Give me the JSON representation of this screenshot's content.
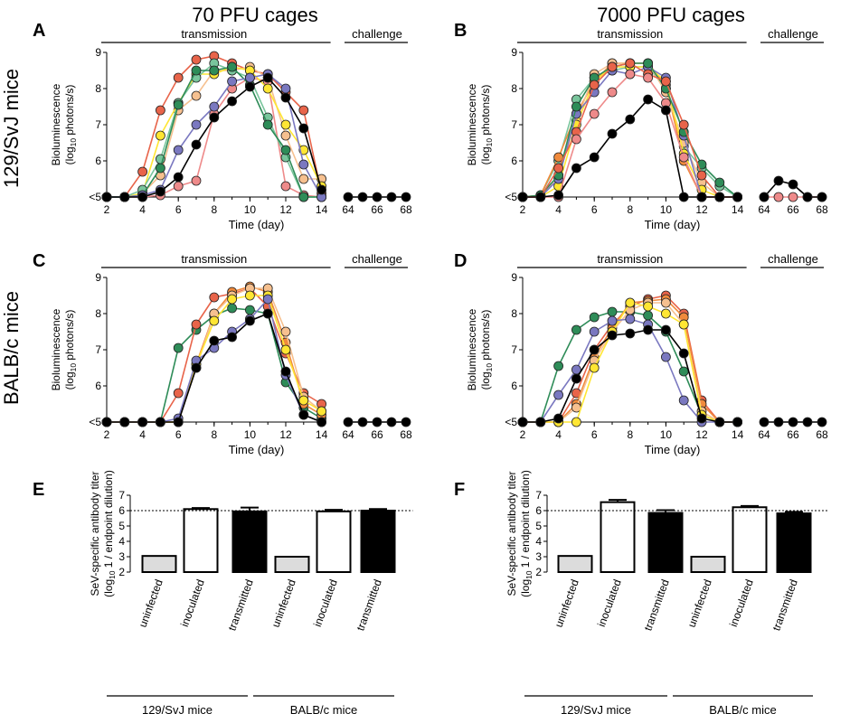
{
  "column_titles": [
    "70 PFU cages",
    "7000 PFU cages"
  ],
  "row_titles": [
    "129/SvJ mice",
    "BALB/c mice"
  ],
  "colors": {
    "red": "#e8644a",
    "peach": "#f6c08f",
    "orange": "#f08a3c",
    "yellow": "#ffe633",
    "green": "#2e8c58",
    "light_green": "#79c59c",
    "purple": "#7a78c0",
    "pink": "#ee8a8a",
    "black": "#000000",
    "bar_uninfected": "#dcdcdc",
    "bar_inoculated": "#ffffff",
    "bar_transmitted": "#000000"
  },
  "chart_data": [
    {
      "panel": "A",
      "type": "line",
      "phase_labels": [
        "transmission",
        "challenge"
      ],
      "xlabel": "Time (day)",
      "ylabel_line1": "Bioluminescence",
      "ylabel_line2_main": "(log",
      "ylabel_line2_sub": "10",
      "ylabel_line2_end": " photons/s)",
      "ylim": [
        5,
        9
      ],
      "y_ticks": [
        "<5",
        "6",
        "7",
        "8",
        "9"
      ],
      "x_ticks": [
        "2",
        "4",
        "6",
        "8",
        "10",
        "12",
        "14",
        "64",
        "66",
        "68"
      ],
      "days": [
        2,
        3,
        4,
        5,
        6,
        7,
        8,
        9,
        10,
        11,
        12,
        13,
        14
      ],
      "challenge_days": [
        64,
        65,
        66,
        67,
        68
      ],
      "series": [
        {
          "color": "red",
          "values": [
            5,
            5,
            5.7,
            7.4,
            8.3,
            8.8,
            8.9,
            8.7,
            8.5,
            8.4,
            7.9,
            7.4,
            5.1
          ]
        },
        {
          "color": "pink",
          "values": [
            5,
            5,
            5,
            5.05,
            5.3,
            5.45,
            7.3,
            8.0,
            8.3,
            8.2,
            5.3,
            5.05,
            5
          ]
        },
        {
          "color": "peach",
          "values": [
            5,
            5,
            5.1,
            5.6,
            7.4,
            7.8,
            8.5,
            8.5,
            8.6,
            8.3,
            6.7,
            5.5,
            5.5
          ]
        },
        {
          "color": "yellow",
          "values": [
            5,
            5,
            5.1,
            6.7,
            7.6,
            8.4,
            8.4,
            8.6,
            8.5,
            8.0,
            7.0,
            6.3,
            5.3
          ]
        },
        {
          "color": "light_green",
          "values": [
            5,
            5,
            5.2,
            6.05,
            7.6,
            8.3,
            8.7,
            8.5,
            8.3,
            7.2,
            6.1,
            5.0,
            5.0
          ]
        },
        {
          "color": "green",
          "values": [
            5,
            5,
            5.05,
            5.8,
            7.55,
            8.5,
            8.5,
            8.6,
            8.1,
            7.0,
            6.3,
            5.0,
            5.0
          ]
        },
        {
          "color": "purple",
          "values": [
            5,
            5,
            5.05,
            5.2,
            6.3,
            7.0,
            7.5,
            8.2,
            8.3,
            8.4,
            8.0,
            5.9,
            5.0
          ]
        },
        {
          "color": "black",
          "values": [
            5,
            5,
            5.0,
            5.15,
            5.55,
            6.45,
            7.2,
            7.65,
            8.05,
            8.3,
            7.75,
            6.9,
            5.2
          ]
        }
      ],
      "challenge_series": [
        {
          "color": "black",
          "values": [
            5,
            5,
            5,
            5,
            5
          ]
        }
      ]
    },
    {
      "panel": "B",
      "type": "line",
      "phase_labels": [
        "transmission",
        "challenge"
      ],
      "xlabel": "Time (day)",
      "ylabel_line1": "Bioluminescence",
      "ylabel_line2_main": "(log",
      "ylabel_line2_sub": "10",
      "ylabel_line2_end": " photons/s)",
      "ylim": [
        5,
        9
      ],
      "y_ticks": [
        "<5",
        "6",
        "7",
        "8",
        "9"
      ],
      "x_ticks": [
        "2",
        "4",
        "6",
        "8",
        "10",
        "12",
        "14",
        "64",
        "66",
        "68"
      ],
      "days": [
        2,
        3,
        4,
        5,
        6,
        7,
        8,
        9,
        10,
        11,
        12,
        13,
        14
      ],
      "challenge_days": [
        64,
        65,
        66,
        67,
        68
      ],
      "series": [
        {
          "color": "light_green",
          "values": [
            5,
            5.05,
            6.0,
            7.7,
            8.3,
            8.5,
            8.6,
            8.6,
            8.0,
            6.4,
            5.8,
            5.3,
            5.0
          ]
        },
        {
          "color": "orange",
          "values": [
            5,
            5.05,
            6.1,
            7.3,
            8.2,
            8.7,
            8.7,
            8.7,
            8.1,
            6.0,
            5.0,
            5.0,
            5.0
          ]
        },
        {
          "color": "peach",
          "values": [
            5,
            5,
            5.6,
            7.1,
            8.4,
            8.7,
            8.7,
            8.7,
            7.9,
            6.5,
            5.4,
            5.0,
            5.0
          ]
        },
        {
          "color": "yellow",
          "values": [
            5,
            5,
            5.3,
            7.0,
            8.2,
            8.6,
            8.6,
            8.6,
            8.2,
            6.2,
            5.2,
            5.0,
            5.0
          ]
        },
        {
          "color": "purple",
          "values": [
            5,
            5,
            5.5,
            7.3,
            7.9,
            8.5,
            8.4,
            8.6,
            8.3,
            6.7,
            5.0,
            5.0,
            5.0
          ]
        },
        {
          "color": "green",
          "values": [
            5,
            5.05,
            5.6,
            7.5,
            8.3,
            8.6,
            8.7,
            8.7,
            8.0,
            6.8,
            5.9,
            5.4,
            5.0
          ]
        },
        {
          "color": "red",
          "values": [
            5,
            5,
            5.8,
            6.8,
            8.1,
            8.6,
            8.7,
            8.4,
            8.2,
            7.0,
            5.6,
            5.0,
            5.0
          ]
        },
        {
          "color": "pink",
          "values": [
            5,
            5,
            5.0,
            6.6,
            7.3,
            7.9,
            8.4,
            8.3,
            7.6,
            6.1,
            5.0,
            5.0,
            5.0
          ]
        },
        {
          "color": "black",
          "values": [
            5,
            5,
            5.05,
            5.8,
            6.1,
            6.75,
            7.15,
            7.7,
            7.4,
            5.0,
            5.0,
            5.0,
            5.0
          ]
        }
      ],
      "challenge_series": [
        {
          "color": "pink",
          "values": [
            5,
            5,
            5,
            5,
            5
          ]
        },
        {
          "color": "black",
          "values": [
            5,
            5.45,
            5.35,
            5,
            5
          ]
        }
      ]
    },
    {
      "panel": "C",
      "type": "line",
      "phase_labels": [
        "transmission",
        "challenge"
      ],
      "xlabel": "Time (day)",
      "ylabel_line1": "Bioluminescence",
      "ylabel_line2_main": "(log",
      "ylabel_line2_sub": "10",
      "ylabel_line2_end": " photons/s)",
      "ylim": [
        5,
        9
      ],
      "y_ticks": [
        "<5",
        "6",
        "7",
        "8",
        "9"
      ],
      "x_ticks": [
        "2",
        "4",
        "6",
        "8",
        "10",
        "12",
        "14",
        "64",
        "66",
        "68"
      ],
      "days": [
        2,
        3,
        4,
        5,
        6,
        7,
        8,
        9,
        10,
        11,
        12,
        13,
        14
      ],
      "challenge_days": [
        64,
        65,
        66,
        67,
        68
      ],
      "series": [
        {
          "color": "green",
          "values": [
            5,
            5,
            5,
            5,
            7.05,
            7.55,
            7.95,
            8.15,
            8.1,
            8.0,
            6.1,
            5.4,
            5.1
          ]
        },
        {
          "color": "red",
          "values": [
            5,
            5,
            5,
            5,
            5.8,
            7.7,
            8.45,
            8.55,
            8.7,
            8.2,
            6.9,
            5.8,
            5.5
          ]
        },
        {
          "color": "orange",
          "values": [
            5,
            5,
            5,
            5,
            5.0,
            6.6,
            8.0,
            8.6,
            8.75,
            8.6,
            7.2,
            5.5,
            5.2
          ]
        },
        {
          "color": "peach",
          "values": [
            5,
            5,
            5,
            5,
            5.0,
            6.5,
            8.0,
            8.5,
            8.7,
            8.7,
            7.5,
            5.7,
            5.3
          ]
        },
        {
          "color": "yellow",
          "values": [
            5,
            5,
            5,
            5,
            5.0,
            6.6,
            7.8,
            8.4,
            8.5,
            8.5,
            7.0,
            5.6,
            5.3
          ]
        },
        {
          "color": "purple",
          "values": [
            5,
            5,
            5,
            5,
            5.1,
            6.7,
            7.05,
            7.5,
            7.85,
            8.4,
            6.3,
            5.2,
            5.0
          ]
        },
        {
          "color": "black",
          "values": [
            5,
            5,
            5,
            5,
            5.0,
            6.5,
            7.25,
            7.35,
            7.8,
            8.0,
            6.4,
            5.2,
            5.0
          ]
        }
      ],
      "challenge_series": [
        {
          "color": "black",
          "values": [
            5,
            5,
            5,
            5,
            5
          ]
        }
      ]
    },
    {
      "panel": "D",
      "type": "line",
      "phase_labels": [
        "transmission",
        "challenge"
      ],
      "xlabel": "Time (day)",
      "ylabel_line1": "Bioluminescence",
      "ylabel_line2_main": "(log",
      "ylabel_line2_sub": "10",
      "ylabel_line2_end": " photons/s)",
      "ylim": [
        5,
        9
      ],
      "y_ticks": [
        "<5",
        "6",
        "7",
        "8",
        "9"
      ],
      "x_ticks": [
        "2",
        "4",
        "6",
        "8",
        "10",
        "12",
        "14",
        "64",
        "66",
        "68"
      ],
      "days": [
        2,
        3,
        4,
        5,
        6,
        7,
        8,
        9,
        10,
        11,
        12,
        13,
        14
      ],
      "challenge_days": [
        64,
        65,
        66,
        67,
        68
      ],
      "series": [
        {
          "color": "green",
          "values": [
            5,
            5,
            6.55,
            7.55,
            7.9,
            8.05,
            8.05,
            7.95,
            7.5,
            6.4,
            5.2,
            5.0,
            5.0
          ]
        },
        {
          "color": "red",
          "values": [
            5,
            5,
            5.0,
            5.8,
            7.0,
            7.7,
            8.2,
            8.4,
            8.5,
            8.0,
            5.6,
            5.0,
            5.0
          ]
        },
        {
          "color": "orange",
          "values": [
            5,
            5,
            5.0,
            5.5,
            6.8,
            7.6,
            8.3,
            8.35,
            8.4,
            7.9,
            5.5,
            5.0,
            5.0
          ]
        },
        {
          "color": "peach",
          "values": [
            5,
            5,
            5.0,
            5.4,
            6.7,
            7.5,
            8.1,
            8.3,
            8.3,
            7.7,
            5.3,
            5.0,
            5.0
          ]
        },
        {
          "color": "yellow",
          "values": [
            5,
            5,
            5.0,
            5.0,
            6.5,
            7.5,
            8.3,
            8.2,
            8.0,
            7.7,
            5.2,
            5.0,
            5.0
          ]
        },
        {
          "color": "purple",
          "values": [
            5,
            5,
            5.75,
            6.45,
            7.5,
            7.8,
            7.85,
            7.7,
            6.8,
            5.6,
            5.0,
            5.0,
            5.0
          ]
        },
        {
          "color": "black",
          "values": [
            5,
            5,
            5.1,
            6.2,
            7.0,
            7.4,
            7.45,
            7.55,
            7.55,
            6.9,
            5.1,
            5.0,
            5.0
          ]
        }
      ],
      "challenge_series": [
        {
          "color": "black",
          "values": [
            5,
            5,
            5,
            5,
            5
          ]
        }
      ]
    },
    {
      "panel": "E",
      "type": "bar",
      "ylabel_line1": "SeV-specific antibody titer",
      "ylabel_line2_main": "(log",
      "ylabel_line2_sub": "10",
      "ylabel_line2_end": " 1 / endpoint dilution)",
      "ylim": [
        2,
        7
      ],
      "y_ticks": [
        "2",
        "3",
        "4",
        "5",
        "6",
        "7"
      ],
      "reference_line": 6,
      "categories": [
        "uninfected",
        "inoculated",
        "transmitted",
        "uninfected",
        "inoculated",
        "transmitted"
      ],
      "bar_colors": [
        "bar_uninfected",
        "bar_inoculated",
        "bar_transmitted",
        "bar_uninfected",
        "bar_inoculated",
        "bar_transmitted"
      ],
      "values": [
        3.05,
        6.1,
        5.95,
        3.0,
        5.95,
        6.0
      ],
      "errors": [
        0,
        0.07,
        0.25,
        0,
        0.1,
        0.1
      ],
      "groups": [
        {
          "label": "129/SvJ mice",
          "span": [
            0,
            2
          ]
        },
        {
          "label": "BALB/c mice",
          "span": [
            3,
            5
          ]
        }
      ]
    },
    {
      "panel": "F",
      "type": "bar",
      "ylabel_line1": "SeV-specific antibody titer",
      "ylabel_line2_main": "(log",
      "ylabel_line2_sub": "10",
      "ylabel_line2_end": " 1 / endpoint dilution)",
      "ylim": [
        2,
        7
      ],
      "y_ticks": [
        "2",
        "3",
        "4",
        "5",
        "6",
        "7"
      ],
      "reference_line": 6,
      "categories": [
        "uninfected",
        "inoculated",
        "transmitted",
        "uninfected",
        "inoculated",
        "transmitted"
      ],
      "bar_colors": [
        "bar_uninfected",
        "bar_inoculated",
        "bar_transmitted",
        "bar_uninfected",
        "bar_inoculated",
        "bar_transmitted"
      ],
      "values": [
        3.05,
        6.55,
        5.85,
        3.0,
        6.22,
        5.82
      ],
      "errors": [
        0,
        0.15,
        0.18,
        0,
        0.08,
        0.1
      ],
      "groups": [
        {
          "label": "129/SvJ mice",
          "span": [
            0,
            2
          ]
        },
        {
          "label": "BALB/c mice",
          "span": [
            3,
            5
          ]
        }
      ]
    }
  ]
}
